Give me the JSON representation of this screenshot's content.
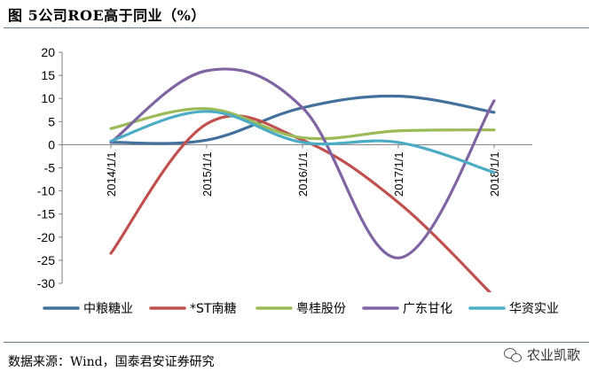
{
  "title": "图 5公司ROE高于同业（%）",
  "source": "数据来源：Wind，国泰君安证券研究",
  "watermark": {
    "icon": "wechat-icon",
    "text": "农业凯歌"
  },
  "chart_data": {
    "type": "line",
    "x": [
      "2014/1/1",
      "2015/1/1",
      "2016/1/1",
      "2017/1/1",
      "2018/1/1"
    ],
    "ylim": [
      -30,
      20
    ],
    "yticks": [
      20,
      15,
      10,
      5,
      0,
      -5,
      -10,
      -15,
      -20,
      -25,
      -30
    ],
    "grid": false,
    "legend_position": "bottom",
    "series": [
      {
        "name": "中粮糖业",
        "color": "#41719c",
        "values": [
          0.5,
          1.0,
          8.0,
          10.5,
          7.0
        ]
      },
      {
        "name": "*ST南糖",
        "color": "#c0504d",
        "values": [
          -23.5,
          4.5,
          1.0,
          -12.5,
          -30
        ]
      },
      {
        "name": "粤桂股份",
        "color": "#9bbb59",
        "values": [
          3.5,
          7.8,
          1.5,
          3.0,
          3.2
        ]
      },
      {
        "name": "广东甘化",
        "color": "#8064a2",
        "values": [
          0.5,
          16.0,
          8.0,
          -24.5,
          9.5
        ]
      },
      {
        "name": "华资实业",
        "color": "#4bacc6",
        "values": [
          0.8,
          7.2,
          0.5,
          0.5,
          -6.0
        ]
      }
    ]
  }
}
